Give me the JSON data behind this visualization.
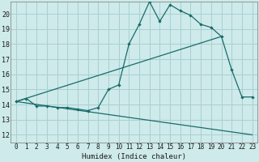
{
  "xlabel": "Humidex (Indice chaleur)",
  "bg_color": "#ceeaea",
  "grid_color": "#a8d0d0",
  "line_color": "#1a6b6b",
  "xlim": [
    -0.5,
    23.5
  ],
  "ylim": [
    11.5,
    20.8
  ],
  "xticks": [
    0,
    1,
    2,
    3,
    4,
    5,
    6,
    7,
    8,
    9,
    10,
    11,
    12,
    13,
    14,
    15,
    16,
    17,
    18,
    19,
    20,
    21,
    22,
    23
  ],
  "yticks": [
    12,
    13,
    14,
    15,
    16,
    17,
    18,
    19,
    20
  ],
  "line1_x": [
    0,
    1,
    2,
    3,
    4,
    5,
    6,
    7,
    8,
    9,
    10,
    11,
    12,
    13,
    14,
    15,
    16,
    17,
    18,
    19,
    20,
    21,
    22,
    23
  ],
  "line1_y": [
    14.2,
    14.4,
    13.9,
    13.9,
    13.8,
    13.8,
    13.7,
    13.6,
    13.8,
    15.0,
    15.3,
    18.0,
    19.3,
    20.8,
    19.5,
    20.6,
    20.2,
    19.9,
    19.3,
    19.1,
    18.5,
    16.3,
    14.5,
    14.5
  ],
  "line2_x": [
    0,
    20
  ],
  "line2_y": [
    14.2,
    18.5
  ],
  "line3_x": [
    0,
    23
  ],
  "line3_y": [
    14.2,
    12.0
  ],
  "xlabel_fontsize": 6.5,
  "tick_fontsize": 5.5,
  "ytick_fontsize": 6.0
}
